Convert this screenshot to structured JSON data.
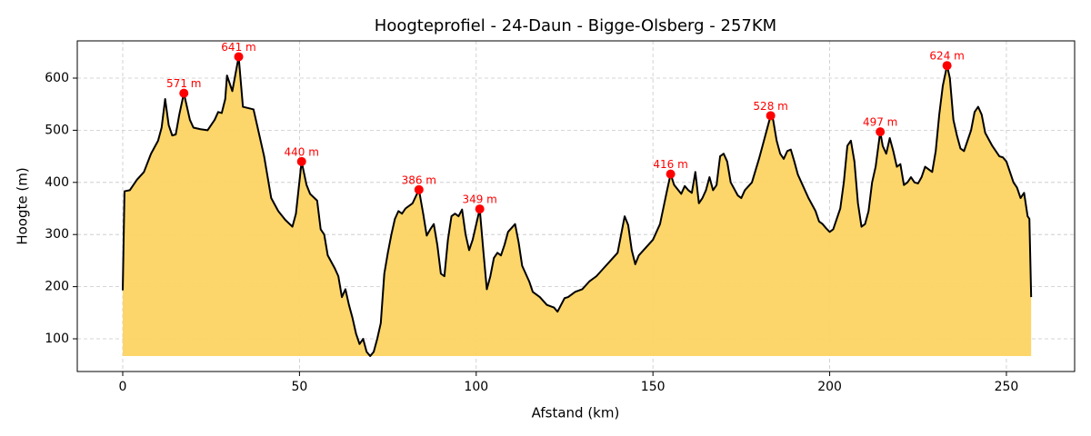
{
  "chart_data": {
    "type": "line",
    "title": "Hoogteprofiel - 24-Daun - Bigge-Olsberg - 257KM",
    "xlabel": "Afstand (km)",
    "ylabel": "Hoogte (m)",
    "x": [
      0,
      0.5,
      2,
      4,
      6,
      8,
      10,
      11,
      12,
      13,
      14,
      15,
      16,
      17.3,
      19,
      20,
      22,
      24,
      26,
      27,
      28,
      29,
      29.5,
      31,
      32.8,
      34,
      37,
      38,
      40,
      42,
      44,
      46,
      48,
      49,
      50.6,
      52,
      53,
      55,
      56,
      57,
      58,
      60,
      61,
      62,
      63,
      64,
      65,
      66,
      67,
      68,
      69,
      70,
      71,
      72,
      73,
      74,
      75,
      76,
      77,
      78,
      79,
      80,
      82,
      83.8,
      85,
      86,
      87,
      88,
      89,
      90,
      91,
      92,
      93,
      94,
      95,
      96,
      97,
      98,
      99,
      101,
      102,
      103,
      104,
      105,
      106,
      107,
      108,
      109,
      111,
      112,
      113,
      115,
      116,
      118,
      120,
      122,
      123,
      124,
      125,
      126,
      128,
      130,
      132,
      134,
      136,
      138,
      140,
      141,
      142,
      143,
      144,
      145,
      146,
      148,
      150,
      152,
      154,
      155,
      156,
      158,
      159,
      160,
      161,
      162,
      163,
      164,
      165,
      166,
      167,
      168,
      169,
      170,
      171,
      172,
      174,
      175,
      176,
      178,
      180,
      181,
      183.3,
      184,
      185,
      186,
      187,
      188,
      189,
      190,
      191,
      192,
      193,
      194,
      196,
      197,
      198,
      199,
      200,
      201,
      202,
      203,
      204,
      205,
      206,
      207,
      208,
      209,
      210,
      211,
      212,
      213,
      214.3,
      215,
      216,
      217,
      218,
      219,
      220,
      221,
      222,
      223,
      224,
      225,
      226,
      227,
      228,
      229,
      230,
      231,
      232,
      233.2,
      234,
      235,
      236,
      237,
      238,
      239,
      240,
      241,
      242,
      243,
      244,
      246,
      248,
      249,
      250,
      251,
      252,
      253,
      254,
      255,
      256,
      256.5,
      257
    ],
    "values": [
      193,
      383,
      385,
      405,
      420,
      455,
      480,
      505,
      560,
      510,
      490,
      492,
      530,
      571,
      520,
      505,
      502,
      500,
      520,
      535,
      533,
      560,
      605,
      575,
      641,
      545,
      540,
      510,
      450,
      370,
      345,
      328,
      315,
      340,
      440,
      395,
      378,
      365,
      310,
      300,
      260,
      235,
      220,
      180,
      195,
      165,
      140,
      110,
      90,
      100,
      75,
      67,
      75,
      100,
      130,
      225,
      265,
      300,
      330,
      345,
      340,
      350,
      360,
      386,
      340,
      298,
      310,
      320,
      280,
      225,
      220,
      290,
      335,
      340,
      335,
      348,
      300,
      270,
      290,
      349,
      270,
      195,
      220,
      255,
      265,
      260,
      280,
      305,
      320,
      285,
      240,
      210,
      190,
      180,
      165,
      160,
      152,
      165,
      178,
      180,
      190,
      195,
      210,
      220,
      235,
      250,
      265,
      300,
      335,
      318,
      270,
      243,
      260,
      275,
      290,
      320,
      385,
      416,
      395,
      378,
      393,
      385,
      380,
      420,
      360,
      370,
      385,
      410,
      385,
      395,
      450,
      455,
      440,
      400,
      375,
      370,
      385,
      400,
      445,
      470,
      528,
      520,
      480,
      455,
      445,
      460,
      463,
      440,
      415,
      400,
      385,
      370,
      345,
      325,
      320,
      312,
      305,
      310,
      330,
      350,
      400,
      470,
      480,
      440,
      360,
      315,
      320,
      345,
      400,
      430,
      497,
      470,
      455,
      485,
      460,
      430,
      435,
      395,
      400,
      410,
      400,
      398,
      410,
      430,
      425,
      420,
      460,
      530,
      585,
      624,
      600,
      520,
      490,
      465,
      460,
      480,
      500,
      535,
      545,
      530,
      495,
      470,
      450,
      448,
      440,
      420,
      400,
      390,
      370,
      380,
      335,
      330,
      180
    ],
    "line_color": "#000000",
    "fill_color": "#fcd462",
    "peaks": {
      "x": [
        17.3,
        32.8,
        50.6,
        83.8,
        101,
        155,
        183.3,
        214.3,
        233.2
      ],
      "values": [
        571,
        641,
        440,
        386,
        349,
        416,
        528,
        497,
        624
      ],
      "value_labels": [
        "571 m",
        "641 m",
        "440 m",
        "386 m",
        "349 m",
        "416 m",
        "528 m",
        "497 m",
        "624 m"
      ],
      "color": "#ff0000"
    },
    "xlim": [
      -12.86,
      269.3
    ],
    "ylim": [
      37.3,
      671.4
    ],
    "xticks": [
      0,
      50,
      100,
      150,
      200,
      250
    ],
    "yticks": [
      100,
      200,
      300,
      400,
      500,
      600
    ],
    "grid": true
  }
}
